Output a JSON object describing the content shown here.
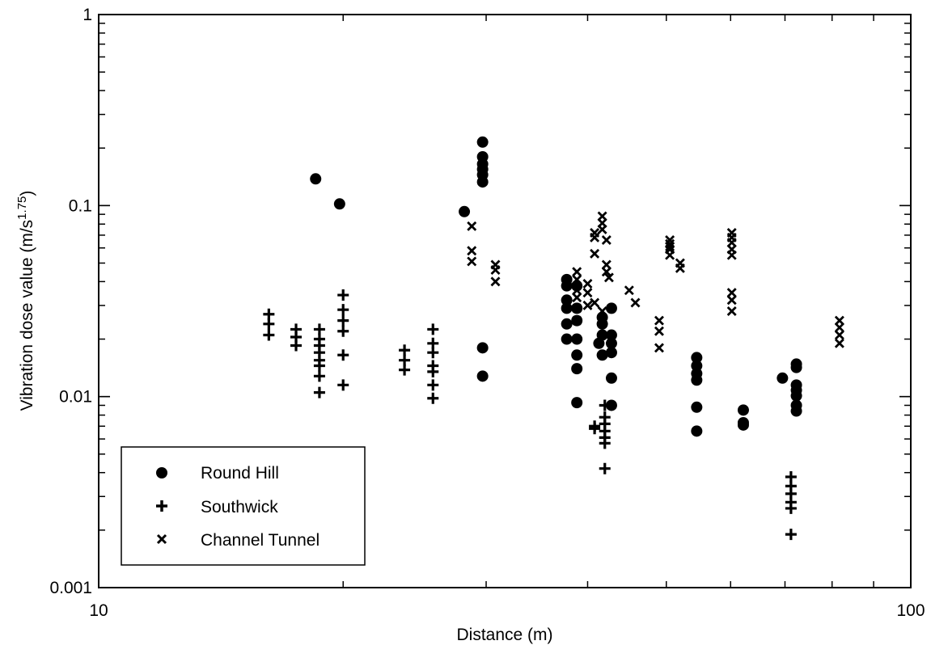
{
  "chart_data": {
    "type": "scatter",
    "title": "",
    "xlabel": "Distance (m)",
    "ylabel_main": "Vibration dose value (m/s",
    "ylabel_exp": "1.75",
    "ylabel_close": ")",
    "xscale": "log",
    "yscale": "log",
    "xlim": [
      10,
      100
    ],
    "ylim": [
      0.001,
      1
    ],
    "x_ticks": [
      {
        "value": 10,
        "label": "10"
      },
      {
        "value": 100,
        "label": "100"
      }
    ],
    "y_ticks": [
      {
        "value": 0.001,
        "label": "0.001"
      },
      {
        "value": 0.01,
        "label": "0.01"
      },
      {
        "value": 0.1,
        "label": "0.1"
      },
      {
        "value": 1,
        "label": "1"
      }
    ],
    "grid": false,
    "legend_position": "bottom-left",
    "series": [
      {
        "name": "Round Hill",
        "marker": "circle",
        "points": [
          [
            18.5,
            0.138
          ],
          [
            19.8,
            0.102
          ],
          [
            28.2,
            0.093
          ],
          [
            29.7,
            0.215
          ],
          [
            29.7,
            0.18
          ],
          [
            29.7,
            0.165
          ],
          [
            29.7,
            0.155
          ],
          [
            29.7,
            0.145
          ],
          [
            29.7,
            0.133
          ],
          [
            29.7,
            0.018
          ],
          [
            29.7,
            0.0128
          ],
          [
            37.7,
            0.041
          ],
          [
            37.7,
            0.038
          ],
          [
            37.7,
            0.032
          ],
          [
            37.7,
            0.029
          ],
          [
            37.7,
            0.024
          ],
          [
            37.7,
            0.02
          ],
          [
            38.8,
            0.038
          ],
          [
            38.8,
            0.029
          ],
          [
            38.8,
            0.025
          ],
          [
            38.8,
            0.02
          ],
          [
            38.8,
            0.0165
          ],
          [
            38.8,
            0.014
          ],
          [
            38.8,
            0.0093
          ],
          [
            41.3,
            0.019
          ],
          [
            41.7,
            0.026
          ],
          [
            41.7,
            0.024
          ],
          [
            41.7,
            0.021
          ],
          [
            41.7,
            0.0165
          ],
          [
            42.8,
            0.029
          ],
          [
            42.8,
            0.021
          ],
          [
            42.8,
            0.019
          ],
          [
            42.8,
            0.017
          ],
          [
            42.8,
            0.0125
          ],
          [
            42.8,
            0.009
          ],
          [
            54.5,
            0.016
          ],
          [
            54.5,
            0.0145
          ],
          [
            54.5,
            0.0132
          ],
          [
            54.5,
            0.0122
          ],
          [
            54.5,
            0.0088
          ],
          [
            54.5,
            0.0066
          ],
          [
            62.2,
            0.0085
          ],
          [
            62.2,
            0.0073
          ],
          [
            62.2,
            0.0071
          ],
          [
            69.5,
            0.0125
          ],
          [
            72.3,
            0.0148
          ],
          [
            72.3,
            0.0142
          ],
          [
            72.3,
            0.0115
          ],
          [
            72.3,
            0.0108
          ],
          [
            72.3,
            0.0101
          ],
          [
            72.3,
            0.009
          ],
          [
            72.3,
            0.0084
          ]
        ]
      },
      {
        "name": "Southwick",
        "marker": "plus",
        "points": [
          [
            16.2,
            0.027
          ],
          [
            16.2,
            0.024
          ],
          [
            16.2,
            0.021
          ],
          [
            17.5,
            0.0225
          ],
          [
            17.5,
            0.0205
          ],
          [
            17.5,
            0.0185
          ],
          [
            18.7,
            0.0225
          ],
          [
            18.7,
            0.02
          ],
          [
            18.7,
            0.0185
          ],
          [
            18.7,
            0.017
          ],
          [
            18.7,
            0.0155
          ],
          [
            18.7,
            0.0145
          ],
          [
            18.7,
            0.0128
          ],
          [
            18.7,
            0.0105
          ],
          [
            20.0,
            0.034
          ],
          [
            20.0,
            0.0285
          ],
          [
            20.0,
            0.025
          ],
          [
            20.0,
            0.022
          ],
          [
            20.0,
            0.0165
          ],
          [
            20.0,
            0.0115
          ],
          [
            23.8,
            0.0175
          ],
          [
            23.8,
            0.0155
          ],
          [
            23.8,
            0.0138
          ],
          [
            25.8,
            0.0225
          ],
          [
            25.8,
            0.019
          ],
          [
            25.8,
            0.017
          ],
          [
            25.8,
            0.0145
          ],
          [
            25.8,
            0.0135
          ],
          [
            25.8,
            0.0115
          ],
          [
            25.8,
            0.0098
          ],
          [
            40.8,
            0.007
          ],
          [
            40.8,
            0.0068
          ],
          [
            42.0,
            0.009
          ],
          [
            42.0,
            0.0078
          ],
          [
            42.0,
            0.0072
          ],
          [
            42.0,
            0.0066
          ],
          [
            42.0,
            0.0061
          ],
          [
            42.0,
            0.0057
          ],
          [
            42.0,
            0.0042
          ],
          [
            71.2,
            0.0038
          ],
          [
            71.2,
            0.0034
          ],
          [
            71.2,
            0.0031
          ],
          [
            71.2,
            0.0028
          ],
          [
            71.2,
            0.0026
          ],
          [
            71.2,
            0.0019
          ]
        ]
      },
      {
        "name": "Channel Tunnel",
        "marker": "x",
        "points": [
          [
            28.8,
            0.078
          ],
          [
            28.8,
            0.058
          ],
          [
            28.8,
            0.051
          ],
          [
            30.8,
            0.049
          ],
          [
            30.8,
            0.046
          ],
          [
            30.8,
            0.04
          ],
          [
            38.8,
            0.045
          ],
          [
            38.8,
            0.041
          ],
          [
            38.8,
            0.036
          ],
          [
            38.8,
            0.033
          ],
          [
            38.8,
            0.029
          ],
          [
            38.8,
            0.025
          ],
          [
            40.0,
            0.039
          ],
          [
            40.0,
            0.035
          ],
          [
            40.0,
            0.03
          ],
          [
            40.8,
            0.072
          ],
          [
            40.8,
            0.068
          ],
          [
            40.8,
            0.056
          ],
          [
            40.8,
            0.031
          ],
          [
            41.7,
            0.088
          ],
          [
            41.7,
            0.081
          ],
          [
            41.7,
            0.075
          ],
          [
            41.7,
            0.028
          ],
          [
            42.2,
            0.066
          ],
          [
            42.2,
            0.049
          ],
          [
            42.2,
            0.045
          ],
          [
            42.5,
            0.042
          ],
          [
            45.0,
            0.036
          ],
          [
            45.8,
            0.031
          ],
          [
            49.0,
            0.025
          ],
          [
            49.0,
            0.022
          ],
          [
            49.0,
            0.018
          ],
          [
            50.5,
            0.066
          ],
          [
            50.5,
            0.063
          ],
          [
            50.5,
            0.061
          ],
          [
            50.5,
            0.059
          ],
          [
            50.5,
            0.055
          ],
          [
            52.0,
            0.05
          ],
          [
            52.0,
            0.047
          ],
          [
            60.2,
            0.072
          ],
          [
            60.2,
            0.068
          ],
          [
            60.2,
            0.064
          ],
          [
            60.2,
            0.059
          ],
          [
            60.2,
            0.055
          ],
          [
            60.2,
            0.035
          ],
          [
            60.2,
            0.032
          ],
          [
            60.2,
            0.028
          ],
          [
            81.7,
            0.025
          ],
          [
            81.7,
            0.023
          ],
          [
            81.7,
            0.021
          ],
          [
            81.7,
            0.019
          ]
        ]
      }
    ]
  }
}
